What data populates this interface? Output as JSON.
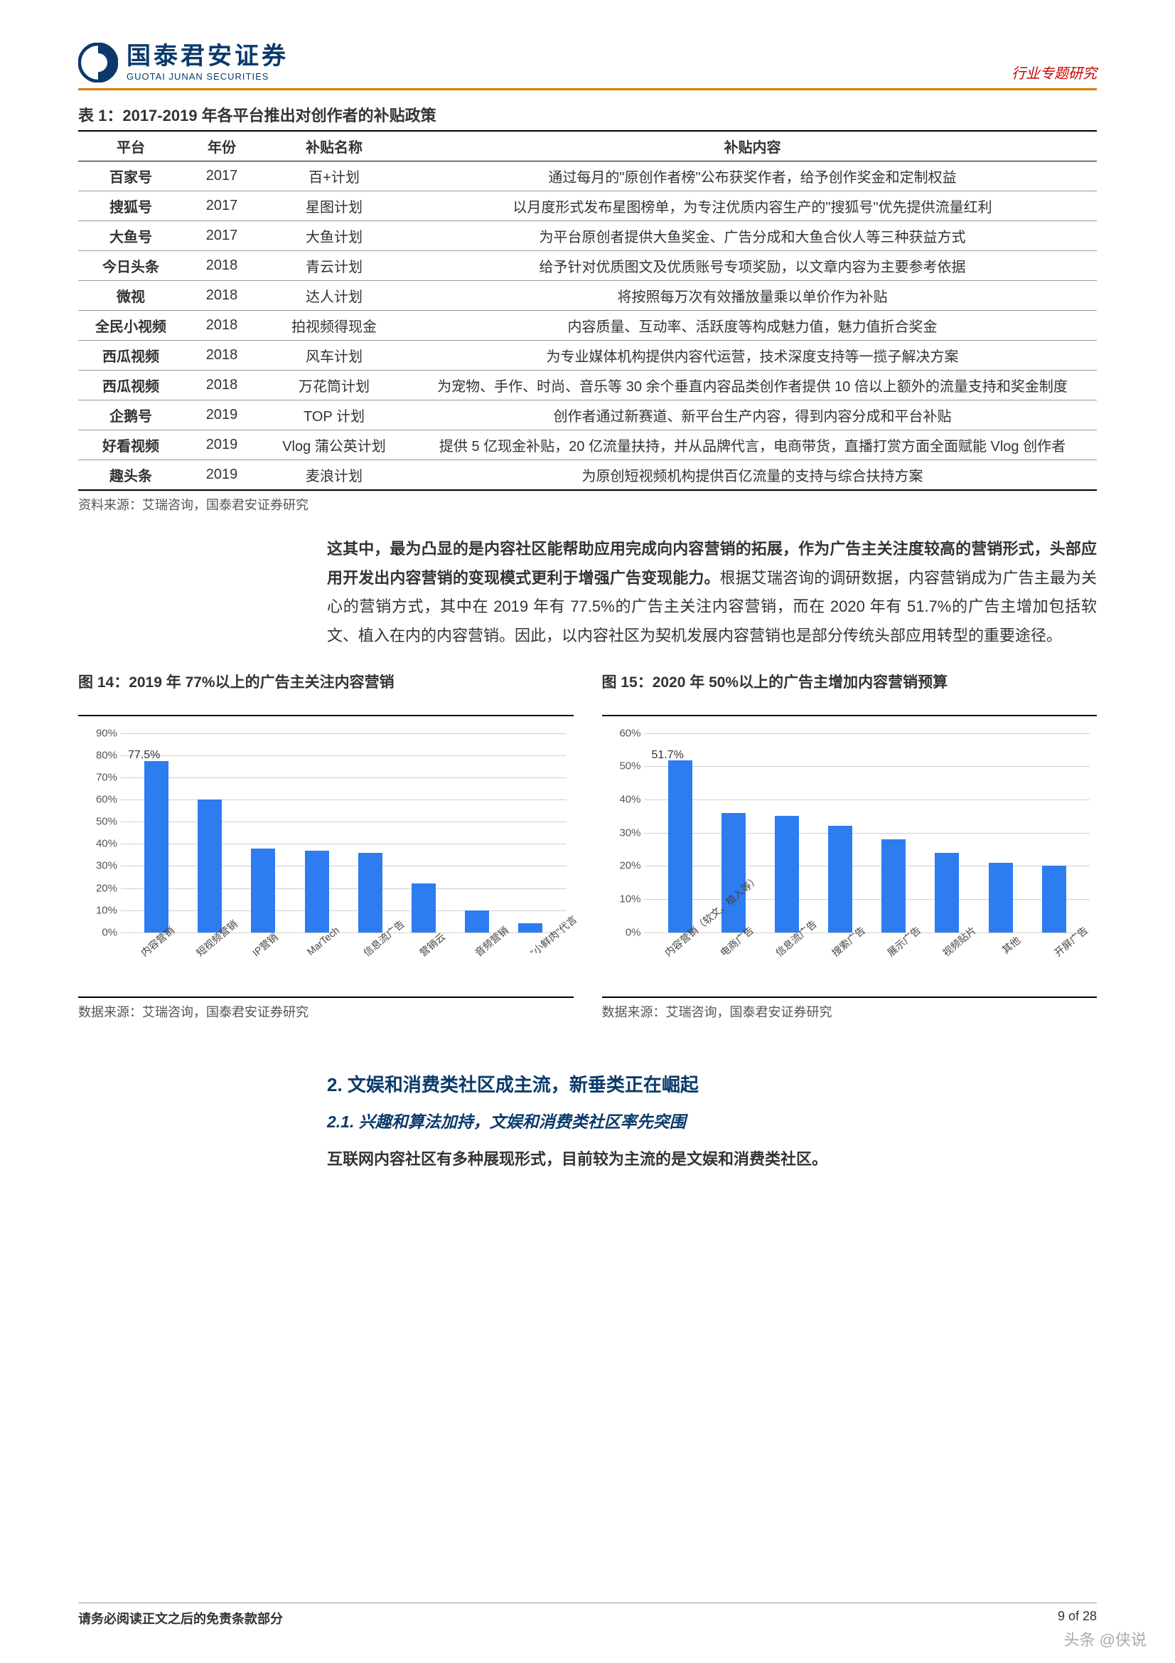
{
  "header": {
    "logo_cn": "国泰君安证券",
    "logo_en": "GUOTAI JUNAN SECURITIES",
    "right": "行业专题研究",
    "border_color": "#d97c00"
  },
  "table": {
    "title": "表 1：2017-2019 年各平台推出对创作者的补贴政策",
    "columns": [
      "平台",
      "年份",
      "补贴名称",
      "补贴内容"
    ],
    "rows": [
      [
        "百家号",
        "2017",
        "百+计划",
        "通过每月的\"原创作者榜\"公布获奖作者，给予创作奖金和定制权益"
      ],
      [
        "搜狐号",
        "2017",
        "星图计划",
        "以月度形式发布星图榜单，为专注优质内容生产的\"搜狐号\"优先提供流量红利"
      ],
      [
        "大鱼号",
        "2017",
        "大鱼计划",
        "为平台原创者提供大鱼奖金、广告分成和大鱼合伙人等三种获益方式"
      ],
      [
        "今日头条",
        "2018",
        "青云计划",
        "给予针对优质图文及优质账号专项奖励，以文章内容为主要参考依据"
      ],
      [
        "微视",
        "2018",
        "达人计划",
        "将按照每万次有效播放量乘以单价作为补贴"
      ],
      [
        "全民小视频",
        "2018",
        "拍视频得现金",
        "内容质量、互动率、活跃度等构成魅力值，魅力值折合奖金"
      ],
      [
        "西瓜视频",
        "2018",
        "风车计划",
        "为专业媒体机构提供内容代运营，技术深度支持等一揽子解决方案"
      ],
      [
        "西瓜视频",
        "2018",
        "万花筒计划",
        "为宠物、手作、时尚、音乐等 30 余个垂直内容品类创作者提供 10 倍以上额外的流量支持和奖金制度"
      ],
      [
        "企鹅号",
        "2019",
        "TOP 计划",
        "创作者通过新赛道、新平台生产内容，得到内容分成和平台补贴"
      ],
      [
        "好看视频",
        "2019",
        "Vlog 蒲公英计划",
        "提供 5 亿现金补贴，20 亿流量扶持，并从品牌代言，电商带货，直播打赏方面全面赋能 Vlog 创作者"
      ],
      [
        "趣头条",
        "2019",
        "麦浪计划",
        "为原创短视频机构提供百亿流量的支持与综合扶持方案"
      ]
    ],
    "source": "资料来源：艾瑞咨询，国泰君安证券研究"
  },
  "body_text": "<b>这其中，最为凸显的是内容社区能帮助应用完成向内容营销的拓展，作为广告主关注度较高的营销形式，头部应用开发出内容营销的变现模式更利于增强广告变现能力。</b>根据艾瑞咨询的调研数据，内容营销成为广告主最为关心的营销方式，其中在 2019 年有 77.5%的广告主关注内容营销，而在 2020 年有 51.7%的广告主增加包括软文、植入在内的内容营销。因此，以内容社区为契机发展内容营销也是部分传统头部应用转型的重要途径。",
  "chart14": {
    "title": "图 14：2019 年 77%以上的广告主关注内容营销",
    "type": "bar",
    "categories": [
      "内容营销",
      "短视频营销",
      "IP营销",
      "MarTech",
      "信息流广告",
      "营销云",
      "音频营销",
      "\"小鲜肉\"代言"
    ],
    "values": [
      77.5,
      60,
      38,
      37,
      36,
      22,
      10,
      4
    ],
    "ymax": 90,
    "ytick_step": 10,
    "bar_color": "#2d7cf0",
    "grid_color": "#d0d0d0",
    "value_label": "77.5%",
    "source": "数据来源：艾瑞咨询，国泰君安证券研究"
  },
  "chart15": {
    "title": "图 15：2020 年 50%以上的广告主增加内容营销预算",
    "type": "bar",
    "categories": [
      "内容营销（软文、植入等）",
      "电商广告",
      "信息流广告",
      "搜索广告",
      "展示广告",
      "视频贴片",
      "其他",
      "开屏广告"
    ],
    "values": [
      51.7,
      36,
      35,
      32,
      28,
      24,
      21,
      20
    ],
    "ymax": 60,
    "ytick_step": 10,
    "bar_color": "#2d7cf0",
    "grid_color": "#d0d0d0",
    "value_label": "51.7%",
    "source": "数据来源：艾瑞咨询，国泰君安证券研究"
  },
  "heading2": "2. 文娱和消费类社区成主流，新垂类正在崛起",
  "heading3": "2.1. 兴趣和算法加持，文娱和消费类社区率先突围",
  "body_bold": "互联网内容社区有多种展现形式，目前较为主流的是文娱和消费类社区。",
  "footer": {
    "left": "请务必阅读正文之后的免责条款部分",
    "right": "9 of 28"
  },
  "watermark": "头条 @侠说"
}
